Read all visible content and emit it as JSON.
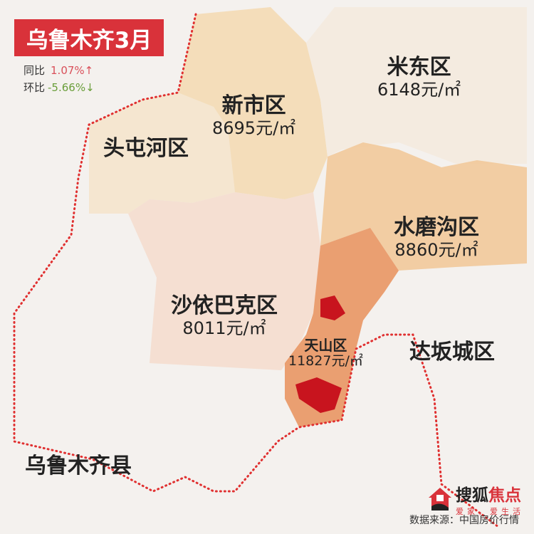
{
  "title": "乌鲁木齐3月",
  "stats": [
    {
      "label": "同比",
      "value": "1.07%",
      "arrow": "↑",
      "color": "#d9505a"
    },
    {
      "label": "环比",
      "value": "-5.66%",
      "arrow": "↓",
      "color": "#6a9e3a"
    }
  ],
  "districts": [
    {
      "name": "米东区",
      "price": "6148元/㎡"
    },
    {
      "name": "新市区",
      "price": "8695元/㎡"
    },
    {
      "name": "头屯河区",
      "price": ""
    },
    {
      "name": "水磨沟区",
      "price": "8860元/㎡"
    },
    {
      "name": "沙依巴克区",
      "price": "8011元/㎡"
    },
    {
      "name": "天山区",
      "price": "11827元/㎡"
    },
    {
      "name": "达坂城区",
      "price": ""
    },
    {
      "name": "乌鲁木齐县",
      "price": ""
    }
  ],
  "logo": {
    "brand_a": "搜狐",
    "brand_b": "焦点",
    "slogan": "爱家，爱生活"
  },
  "source": "数据来源：中国房价行情",
  "colors": {
    "accent": "#d9323a",
    "boundary": "#e03030",
    "tianshan": "#e8905a",
    "hotspot": "#c8141e"
  }
}
